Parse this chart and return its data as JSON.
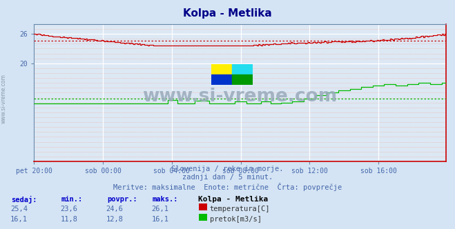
{
  "title": "Kolpa - Metlika",
  "bg_color": "#d4e4f4",
  "plot_bg_color": "#dce8f4",
  "title_color": "#000088",
  "tick_color": "#4466aa",
  "subtitle_color": "#4466aa",
  "watermark_text": "www.si-vreme.com",
  "watermark_color": "#99aabb",
  "subtitle_lines": [
    "Slovenija / reke in morje.",
    "zadnji dan / 5 minut.",
    "Meritve: maksimalne  Enote: metrične  Črta: povprečje"
  ],
  "x_tick_labels": [
    "pet 20:00",
    "sob 00:00",
    "sob 04:00",
    "sob 08:00",
    "sob 12:00",
    "sob 16:00"
  ],
  "x_tick_positions": [
    0,
    48,
    96,
    144,
    192,
    240
  ],
  "total_points": 288,
  "ylim": [
    0,
    28
  ],
  "ytick_positions": [
    20,
    26
  ],
  "ytick_labels": [
    "20",
    "26"
  ],
  "temp_avg": 24.6,
  "flow_avg": 12.8,
  "station_name": "Kolpa - Metlika",
  "legend_items": [
    {
      "label": "temperatura[C]",
      "color": "#cc0000"
    },
    {
      "label": "pretok[m3/s]",
      "color": "#00bb00"
    }
  ],
  "table_headers": [
    "sedaj:",
    "min.:",
    "povpr.:",
    "maks.:"
  ],
  "table_row1": [
    "25,4",
    "23,6",
    "24,6",
    "26,1"
  ],
  "table_row2": [
    "16,1",
    "11,8",
    "12,8",
    "16,1"
  ],
  "temp_color": "#cc0000",
  "flow_color": "#00bb00",
  "grid_major_color": "#ffffff",
  "grid_minor_h_color": "#e8c8c8",
  "grid_minor_v_color": "#dde8f0",
  "spine_bottom_color": "#cc0000",
  "spine_other_color": "#6688aa",
  "left_label": "www.si-vreme.com"
}
